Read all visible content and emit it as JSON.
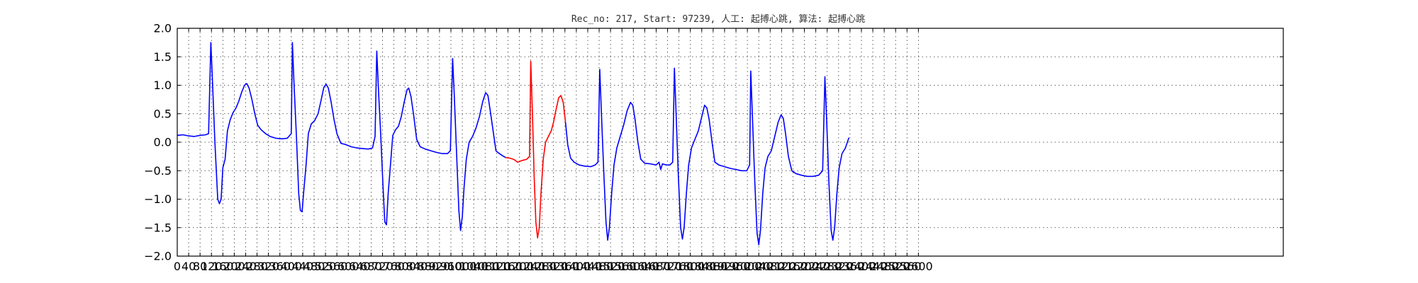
{
  "chart_data": {
    "type": "line",
    "title": "Rec_no: 217, Start: 97239, 人工: 起搏心跳, 算法: 起搏心跳",
    "xlabel": "",
    "ylabel": "",
    "xlim": [
      0,
      3880
    ],
    "ylim": [
      -2.0,
      2.0
    ],
    "grid": true,
    "yticks": [
      -2.0,
      -1.5,
      -1.0,
      -0.5,
      0.0,
      0.5,
      1.0,
      1.5,
      2.0
    ],
    "ytick_labels": [
      "−2.0",
      "−1.5",
      "−1.0",
      "−0.5",
      "0.0",
      "0.5",
      "1.0",
      "1.5",
      "2.0"
    ],
    "xticks": [
      0,
      40,
      80,
      120,
      160,
      200,
      240,
      280,
      320,
      360,
      400,
      440,
      480,
      520,
      560,
      600,
      640,
      680,
      720,
      760,
      800,
      840,
      880,
      920,
      960,
      1000,
      1040,
      1080,
      1120,
      1160,
      1200,
      1240,
      1280,
      1320,
      1360,
      1400,
      1440,
      1480,
      1520,
      1560,
      1600,
      1640,
      1680,
      1720,
      1760,
      1800,
      1840,
      1880,
      1920,
      1960,
      2000,
      2040,
      2080,
      2120,
      2160,
      2200,
      2240,
      2280,
      2320,
      2360,
      2400,
      2440,
      2480,
      2520,
      2560,
      2600
    ],
    "series": [
      {
        "color": "#0000ff",
        "points": [
          [
            0,
            0.12
          ],
          [
            20,
            0.13
          ],
          [
            40,
            0.11
          ],
          [
            60,
            0.1
          ],
          [
            80,
            0.12
          ],
          [
            100,
            0.13
          ],
          [
            110,
            0.15
          ],
          [
            118,
            1.75
          ],
          [
            124,
            1.0
          ],
          [
            132,
            0.0
          ],
          [
            142,
            -1.0
          ],
          [
            148,
            -1.08
          ],
          [
            154,
            -1.0
          ],
          [
            160,
            -0.45
          ],
          [
            168,
            -0.3
          ],
          [
            176,
            0.2
          ],
          [
            186,
            0.4
          ],
          [
            196,
            0.52
          ],
          [
            206,
            0.6
          ],
          [
            216,
            0.72
          ],
          [
            226,
            0.88
          ],
          [
            236,
            1.0
          ],
          [
            244,
            1.03
          ],
          [
            252,
            0.95
          ],
          [
            262,
            0.75
          ],
          [
            272,
            0.5
          ],
          [
            282,
            0.3
          ],
          [
            294,
            0.22
          ],
          [
            310,
            0.15
          ],
          [
            326,
            0.1
          ],
          [
            346,
            0.07
          ],
          [
            366,
            0.06
          ],
          [
            386,
            0.07
          ],
          [
            400,
            0.15
          ],
          [
            404,
            1.75
          ],
          [
            410,
            1.0
          ],
          [
            418,
            0.1
          ],
          [
            426,
            -0.9
          ],
          [
            432,
            -1.2
          ],
          [
            438,
            -1.22
          ],
          [
            444,
            -0.85
          ],
          [
            452,
            -0.4
          ],
          [
            460,
            0.15
          ],
          [
            470,
            0.32
          ],
          [
            482,
            0.38
          ],
          [
            494,
            0.5
          ],
          [
            504,
            0.72
          ],
          [
            514,
            0.96
          ],
          [
            522,
            1.02
          ],
          [
            530,
            0.95
          ],
          [
            540,
            0.7
          ],
          [
            550,
            0.4
          ],
          [
            560,
            0.15
          ],
          [
            574,
            -0.02
          ],
          [
            590,
            -0.04
          ],
          [
            610,
            -0.08
          ],
          [
            630,
            -0.1
          ],
          [
            650,
            -0.11
          ],
          [
            670,
            -0.12
          ],
          [
            685,
            -0.1
          ],
          [
            694,
            0.1
          ],
          [
            700,
            1.6
          ],
          [
            706,
            0.9
          ],
          [
            714,
            0.1
          ],
          [
            722,
            -0.8
          ],
          [
            728,
            -1.4
          ],
          [
            734,
            -1.45
          ],
          [
            740,
            -0.9
          ],
          [
            748,
            -0.4
          ],
          [
            756,
            0.12
          ],
          [
            766,
            0.22
          ],
          [
            776,
            0.28
          ],
          [
            786,
            0.45
          ],
          [
            796,
            0.7
          ],
          [
            806,
            0.92
          ],
          [
            812,
            0.95
          ],
          [
            820,
            0.8
          ],
          [
            830,
            0.45
          ],
          [
            840,
            0.05
          ],
          [
            852,
            -0.08
          ],
          [
            870,
            -0.12
          ],
          [
            890,
            -0.15
          ],
          [
            910,
            -0.18
          ],
          [
            930,
            -0.2
          ],
          [
            948,
            -0.2
          ],
          [
            958,
            -0.15
          ],
          [
            966,
            1.47
          ],
          [
            972,
            0.8
          ],
          [
            980,
            -0.2
          ],
          [
            988,
            -1.2
          ],
          [
            994,
            -1.55
          ],
          [
            1000,
            -1.3
          ],
          [
            1006,
            -0.8
          ],
          [
            1014,
            -0.3
          ],
          [
            1024,
            0.0
          ],
          [
            1036,
            0.1
          ],
          [
            1048,
            0.25
          ],
          [
            1060,
            0.45
          ],
          [
            1072,
            0.72
          ],
          [
            1082,
            0.87
          ],
          [
            1090,
            0.82
          ],
          [
            1098,
            0.55
          ],
          [
            1108,
            0.2
          ],
          [
            1118,
            -0.15
          ],
          [
            1130,
            -0.2
          ],
          [
            1142,
            -0.24
          ],
          [
            1152,
            -0.27
          ]
        ]
      },
      {
        "color": "#ff0000",
        "points": [
          [
            1152,
            -0.27
          ],
          [
            1166,
            -0.28
          ],
          [
            1180,
            -0.3
          ],
          [
            1194,
            -0.35
          ],
          [
            1210,
            -0.32
          ],
          [
            1226,
            -0.3
          ],
          [
            1236,
            -0.25
          ],
          [
            1240,
            1.42
          ],
          [
            1246,
            0.5
          ],
          [
            1252,
            -0.6
          ],
          [
            1258,
            -1.4
          ],
          [
            1264,
            -1.68
          ],
          [
            1270,
            -1.5
          ],
          [
            1276,
            -0.9
          ],
          [
            1284,
            -0.3
          ],
          [
            1292,
            0.0
          ],
          [
            1302,
            0.1
          ],
          [
            1312,
            0.2
          ],
          [
            1320,
            0.35
          ],
          [
            1328,
            0.55
          ],
          [
            1338,
            0.78
          ],
          [
            1346,
            0.82
          ],
          [
            1354,
            0.7
          ],
          [
            1362,
            0.35
          ]
        ]
      },
      {
        "color": "#0000ff",
        "points": [
          [
            1362,
            0.35
          ],
          [
            1370,
            -0.05
          ],
          [
            1380,
            -0.28
          ],
          [
            1392,
            -0.35
          ],
          [
            1410,
            -0.4
          ],
          [
            1430,
            -0.42
          ],
          [
            1450,
            -0.43
          ],
          [
            1466,
            -0.4
          ],
          [
            1476,
            -0.35
          ],
          [
            1482,
            1.28
          ],
          [
            1488,
            0.5
          ],
          [
            1496,
            -0.5
          ],
          [
            1504,
            -1.4
          ],
          [
            1510,
            -1.72
          ],
          [
            1516,
            -1.5
          ],
          [
            1524,
            -0.9
          ],
          [
            1532,
            -0.4
          ],
          [
            1542,
            -0.1
          ],
          [
            1554,
            0.1
          ],
          [
            1566,
            0.3
          ],
          [
            1578,
            0.55
          ],
          [
            1590,
            0.7
          ],
          [
            1598,
            0.65
          ],
          [
            1606,
            0.4
          ],
          [
            1616,
            0.0
          ],
          [
            1626,
            -0.3
          ],
          [
            1640,
            -0.37
          ],
          [
            1660,
            -0.38
          ],
          [
            1680,
            -0.4
          ],
          [
            1690,
            -0.35
          ],
          [
            1696,
            -0.48
          ],
          [
            1702,
            -0.38
          ],
          [
            1716,
            -0.4
          ],
          [
            1728,
            -0.4
          ],
          [
            1738,
            -0.35
          ],
          [
            1744,
            1.3
          ],
          [
            1750,
            0.5
          ],
          [
            1758,
            -0.6
          ],
          [
            1766,
            -1.5
          ],
          [
            1772,
            -1.7
          ],
          [
            1778,
            -1.5
          ],
          [
            1786,
            -0.9
          ],
          [
            1794,
            -0.4
          ],
          [
            1804,
            -0.1
          ],
          [
            1816,
            0.05
          ],
          [
            1828,
            0.2
          ],
          [
            1840,
            0.45
          ],
          [
            1850,
            0.65
          ],
          [
            1858,
            0.6
          ],
          [
            1866,
            0.4
          ],
          [
            1876,
            0.0
          ],
          [
            1886,
            -0.35
          ],
          [
            1900,
            -0.4
          ],
          [
            1920,
            -0.43
          ],
          [
            1940,
            -0.46
          ],
          [
            1960,
            -0.48
          ],
          [
            1980,
            -0.5
          ],
          [
            1998,
            -0.5
          ],
          [
            2008,
            -0.4
          ],
          [
            2012,
            1.25
          ],
          [
            2018,
            0.4
          ],
          [
            2026,
            -0.7
          ],
          [
            2034,
            -1.6
          ],
          [
            2040,
            -1.8
          ],
          [
            2046,
            -1.55
          ],
          [
            2054,
            -0.9
          ],
          [
            2062,
            -0.45
          ],
          [
            2072,
            -0.25
          ],
          [
            2084,
            -0.15
          ],
          [
            2096,
            0.1
          ],
          [
            2108,
            0.35
          ],
          [
            2118,
            0.48
          ],
          [
            2126,
            0.42
          ],
          [
            2134,
            0.15
          ],
          [
            2144,
            -0.25
          ],
          [
            2156,
            -0.5
          ],
          [
            2170,
            -0.55
          ],
          [
            2190,
            -0.58
          ],
          [
            2210,
            -0.6
          ],
          [
            2230,
            -0.6
          ],
          [
            2250,
            -0.58
          ],
          [
            2264,
            -0.5
          ],
          [
            2272,
            1.15
          ],
          [
            2278,
            0.4
          ],
          [
            2286,
            -0.7
          ],
          [
            2294,
            -1.55
          ],
          [
            2300,
            -1.72
          ],
          [
            2306,
            -1.5
          ],
          [
            2314,
            -0.9
          ],
          [
            2322,
            -0.45
          ],
          [
            2332,
            -0.2
          ],
          [
            2344,
            -0.1
          ],
          [
            2356,
            0.08
          ]
        ]
      }
    ]
  }
}
